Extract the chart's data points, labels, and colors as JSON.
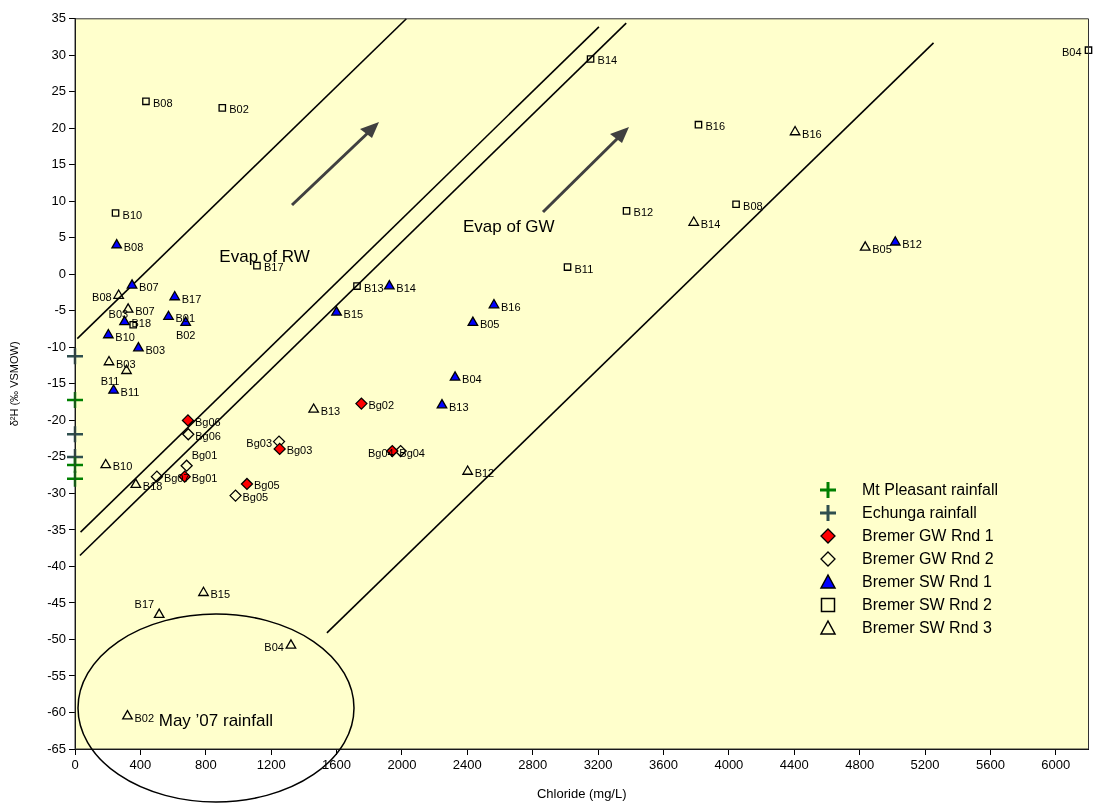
{
  "chart_data": {
    "type": "scatter",
    "xlabel": "Chloride (mg/L)",
    "ylabel": "δ²H (‰ VSMOW)",
    "xlim": [
      0,
      6200
    ],
    "ylim": [
      -65,
      35
    ],
    "xticks": [
      0,
      400,
      800,
      1200,
      1600,
      2000,
      2400,
      2800,
      3200,
      3600,
      4000,
      4400,
      4800,
      5200,
      5600,
      6000
    ],
    "yticks": [
      -65,
      -60,
      -55,
      -50,
      -45,
      -40,
      -35,
      -30,
      -25,
      -20,
      -15,
      -10,
      -5,
      0,
      5,
      10,
      15,
      20,
      25,
      30,
      35
    ],
    "legend": "bottom right",
    "annotations": [
      "Evap of RW",
      "Evap of GW",
      "May ’07 rainfall"
    ],
    "series": [
      {
        "name": "Mt Pleasant rainfall",
        "color": "#008000",
        "marker": "cross",
        "x": [
          0,
          0,
          0
        ],
        "values": [
          -17.2,
          -26.1,
          -28.0
        ]
      },
      {
        "name": "Echunga rainfall",
        "color": "#2f4f4f",
        "marker": "cross",
        "x": [
          0,
          0,
          0
        ],
        "values": [
          -11.2,
          -21.9,
          -25.0
        ]
      },
      {
        "name": "Bremer GW Rnd 1",
        "color": "#ff0000",
        "marker": "diamond",
        "x": [
          691,
          671,
          1252,
          1052,
          1752,
          1941
        ],
        "values": [
          -20.0,
          -27.7,
          -23.9,
          -28.7,
          -17.7,
          -24.2
        ],
        "value_labels": [
          "Bg06",
          "Bg01",
          "Bg03",
          "Bg05",
          "Bg02",
          "Bg04"
        ]
      },
      {
        "name": "Bremer GW Rnd 2",
        "color": "#000000",
        "marker": "diamond",
        "x": [
          693,
          501,
          683,
          1248,
          982,
          1992
        ],
        "values": [
          -21.9,
          -27.7,
          -26.2,
          -22.9,
          -30.3,
          -24.2
        ],
        "value_labels": [
          "Bg06",
          "Bg07",
          "Bg01",
          "Bg03",
          "Bg05",
          "Bg04"
        ]
      },
      {
        "name": "Bremer SW Rnd 1",
        "color": "#0000ff",
        "marker": "triangle",
        "x": [
          255,
          349,
          610,
          572,
          677,
          303,
          204,
          388,
          236,
          1600,
          1923,
          2563,
          2434,
          2325,
          2245,
          5018
        ],
        "values": [
          4.0,
          -1.5,
          -3.1,
          -5.8,
          -6.6,
          -6.5,
          -8.3,
          -10.1,
          -15.9,
          -5.2,
          -1.6,
          -4.2,
          -6.6,
          -14.1,
          -17.9,
          4.4
        ],
        "value_labels": [
          "B08",
          "B07",
          "B17",
          "B01",
          "B02",
          "B18",
          "B10",
          "B03",
          "B11",
          "B15",
          "B14",
          "B16",
          "B05",
          "B04",
          "B13",
          "B12"
        ]
      },
      {
        "name": "Bremer SW Rnd 2",
        "color": "#000000",
        "marker": "square",
        "x": [
          434,
          901,
          248,
          356,
          1113,
          1725,
          3154,
          3374,
          3013,
          3814,
          4044,
          6200
        ],
        "values": [
          23.7,
          22.8,
          8.4,
          -6.9,
          1.2,
          -1.6,
          29.5,
          8.7,
          1.0,
          20.5,
          9.6,
          30.7
        ],
        "value_labels": [
          "B08",
          "B02",
          "B10",
          "B03",
          "B17",
          "B13",
          "B14",
          "B12",
          "B11",
          "B16",
          "B08",
          "B04"
        ]
      },
      {
        "name": "Bremer SW Rnd 3",
        "color": "#000000",
        "marker": "triangle",
        "x": [
          267,
          325,
          208,
          315,
          1460,
          188,
          372,
          786,
          515,
          1321,
          321,
          2402,
          3785,
          4405,
          4834
        ],
        "values": [
          -2.9,
          -4.8,
          -12.0,
          -13.2,
          -18.5,
          -26.1,
          -28.8,
          -43.6,
          -46.6,
          -50.8,
          -60.5,
          -27.0,
          7.1,
          19.5,
          3.7
        ],
        "value_labels": [
          "B08",
          "B07",
          "B03",
          "B11",
          "B13",
          "B10",
          "B18",
          "B15",
          "B17",
          "B04",
          "B02",
          "B12",
          "B14",
          "B16",
          "B05"
        ]
      },
      {
        "type": "line",
        "color": "#000000",
        "marker": "none",
        "x": [
          14,
          2027
        ],
        "values": [
          -8.8,
          35
        ]
      },
      {
        "type": "line",
        "color": "#000000",
        "marker": "none",
        "x": [
          34,
          3205
        ],
        "values": [
          -35.3,
          33.9
        ]
      },
      {
        "type": "line",
        "color": "#000000",
        "marker": "none",
        "x": [
          30,
          3372
        ],
        "values": [
          -38.5,
          34.4
        ]
      },
      {
        "type": "line",
        "color": "#000000",
        "marker": "none",
        "x": [
          1541,
          5252
        ],
        "values": [
          -49.1,
          31.7
        ]
      }
    ]
  }
}
